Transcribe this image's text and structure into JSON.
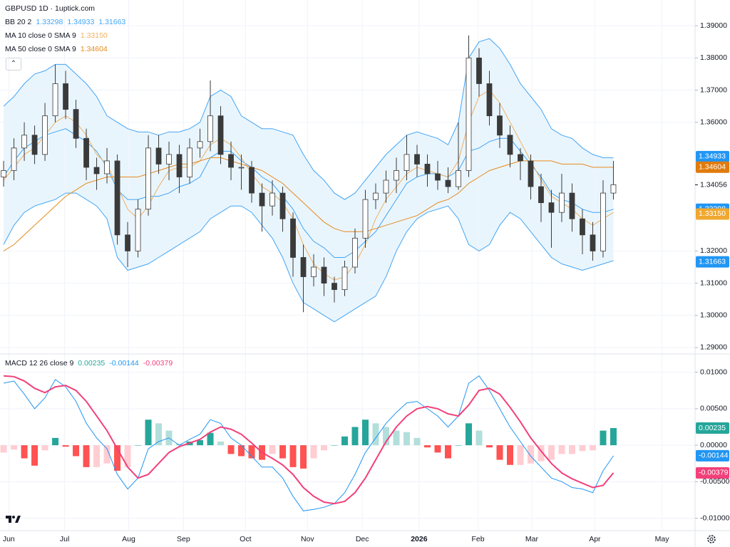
{
  "chart_data": [
    {
      "type": "candlestick",
      "title": "GBPUSD 1D · 1uptick.com",
      "xlim": [
        -0.35,
        66.9
      ],
      "xticks": [
        {
          "value": 0.5,
          "label": "Jun"
        },
        {
          "value": 5.9,
          "label": "Jul"
        },
        {
          "value": 12.1,
          "label": "Aug"
        },
        {
          "value": 17.4,
          "label": "Sep"
        },
        {
          "value": 23.4,
          "label": "Oct"
        },
        {
          "value": 29.4,
          "label": "Nov"
        },
        {
          "value": 34.7,
          "label": "Dec"
        },
        {
          "value": 40.2,
          "label": "2026"
        },
        {
          "value": 45.9,
          "label": "Feb"
        },
        {
          "value": 51.1,
          "label": "Mar"
        },
        {
          "value": 57.2,
          "label": "Apr"
        },
        {
          "value": 63.7,
          "label": "May"
        }
      ],
      "ylim": [
        1.288,
        1.398
      ],
      "yticks": [
        {
          "value": 1.39,
          "label": "1.39000"
        },
        {
          "value": 1.38,
          "label": "1.38000"
        },
        {
          "value": 1.37,
          "label": "1.37000"
        },
        {
          "value": 1.36,
          "label": "1.36000"
        },
        {
          "value": 1.32,
          "label": "1.32000"
        },
        {
          "value": 1.31,
          "label": "1.31000"
        },
        {
          "value": 1.3,
          "label": "1.30000"
        },
        {
          "value": 1.29,
          "label": "1.29000"
        }
      ],
      "grid": true,
      "up_color": "#ffffff",
      "down_color": "#3a3a3a",
      "wick_color": "#3a3a3a",
      "open": [
        1.343,
        1.345,
        1.352,
        1.356,
        1.35,
        1.362,
        1.372,
        1.364,
        1.355,
        1.346,
        1.344,
        1.348,
        1.325,
        1.32,
        1.333,
        1.352,
        1.347,
        1.35,
        1.343,
        1.352,
        1.354,
        1.362,
        1.35,
        1.346,
        1.346,
        1.338,
        1.334,
        1.338,
        1.33,
        1.318,
        1.312,
        1.315,
        1.31,
        1.308,
        1.315,
        1.324,
        1.336,
        1.338,
        1.342,
        1.345,
        1.35,
        1.347,
        1.344,
        1.342,
        1.34,
        1.345,
        1.38,
        1.372,
        1.362,
        1.356,
        1.35,
        1.348,
        1.34,
        1.335,
        1.332,
        1.338,
        1.33,
        1.325,
        1.32,
        1.338
      ],
      "high": [
        1.348,
        1.355,
        1.36,
        1.359,
        1.366,
        1.378,
        1.376,
        1.367,
        1.358,
        1.349,
        1.352,
        1.35,
        1.329,
        1.336,
        1.356,
        1.356,
        1.354,
        1.353,
        1.355,
        1.358,
        1.373,
        1.365,
        1.354,
        1.35,
        1.348,
        1.341,
        1.342,
        1.34,
        1.332,
        1.322,
        1.319,
        1.318,
        1.312,
        1.317,
        1.327,
        1.339,
        1.341,
        1.345,
        1.349,
        1.356,
        1.353,
        1.35,
        1.348,
        1.346,
        1.36,
        1.387,
        1.383,
        1.376,
        1.366,
        1.359,
        1.352,
        1.35,
        1.344,
        1.339,
        1.344,
        1.341,
        1.333,
        1.329,
        1.342,
        1.348
      ],
      "low": [
        1.34,
        1.342,
        1.348,
        1.347,
        1.348,
        1.36,
        1.361,
        1.352,
        1.342,
        1.339,
        1.341,
        1.322,
        1.315,
        1.318,
        1.331,
        1.344,
        1.342,
        1.338,
        1.341,
        1.349,
        1.351,
        1.347,
        1.342,
        1.339,
        1.335,
        1.326,
        1.331,
        1.326,
        1.312,
        1.301,
        1.309,
        1.306,
        1.304,
        1.306,
        1.313,
        1.321,
        1.333,
        1.335,
        1.338,
        1.342,
        1.343,
        1.34,
        1.339,
        1.338,
        1.339,
        1.343,
        1.368,
        1.359,
        1.352,
        1.346,
        1.342,
        1.336,
        1.329,
        1.321,
        1.329,
        1.326,
        1.319,
        1.317,
        1.318,
        1.336
      ],
      "close": [
        1.345,
        1.352,
        1.356,
        1.35,
        1.362,
        1.372,
        1.364,
        1.355,
        1.346,
        1.344,
        1.348,
        1.325,
        1.32,
        1.333,
        1.352,
        1.347,
        1.35,
        1.343,
        1.352,
        1.354,
        1.362,
        1.35,
        1.346,
        1.346,
        1.338,
        1.334,
        1.338,
        1.33,
        1.318,
        1.312,
        1.315,
        1.31,
        1.308,
        1.315,
        1.324,
        1.336,
        1.338,
        1.342,
        1.345,
        1.35,
        1.347,
        1.344,
        1.342,
        1.34,
        1.345,
        1.38,
        1.372,
        1.362,
        1.356,
        1.35,
        1.348,
        1.34,
        1.335,
        1.332,
        1.338,
        1.33,
        1.325,
        1.32,
        1.338,
        1.3406
      ],
      "bands": {
        "name": "BB 20 2",
        "color": "#42a5f5",
        "fill": "#e3f2fd",
        "readout": [
          "1.33298",
          "1.34933",
          "1.31663"
        ],
        "basis": [
          1.343,
          1.348,
          1.352,
          1.354,
          1.356,
          1.357,
          1.358,
          1.356,
          1.354,
          1.351,
          1.346,
          1.339,
          1.336,
          1.336,
          1.337,
          1.337,
          1.338,
          1.34,
          1.341,
          1.343,
          1.349,
          1.351,
          1.351,
          1.348,
          1.346,
          1.343,
          1.341,
          1.337,
          1.333,
          1.327,
          1.323,
          1.321,
          1.318,
          1.318,
          1.32,
          1.323,
          1.326,
          1.331,
          1.336,
          1.341,
          1.343,
          1.344,
          1.344,
          1.343,
          1.345,
          1.351,
          1.352,
          1.354,
          1.355,
          1.355,
          1.351,
          1.347,
          1.343,
          1.338,
          1.336,
          1.335,
          1.333,
          1.332,
          1.332,
          1.333
        ],
        "upper": [
          1.365,
          1.368,
          1.372,
          1.375,
          1.376,
          1.378,
          1.378,
          1.375,
          1.372,
          1.368,
          1.362,
          1.36,
          1.358,
          1.357,
          1.357,
          1.356,
          1.357,
          1.357,
          1.358,
          1.36,
          1.368,
          1.37,
          1.368,
          1.362,
          1.36,
          1.358,
          1.358,
          1.357,
          1.356,
          1.35,
          1.345,
          1.342,
          1.338,
          1.336,
          1.338,
          1.342,
          1.346,
          1.35,
          1.353,
          1.356,
          1.357,
          1.356,
          1.355,
          1.353,
          1.36,
          1.38,
          1.385,
          1.386,
          1.383,
          1.378,
          1.372,
          1.368,
          1.364,
          1.358,
          1.356,
          1.355,
          1.352,
          1.35,
          1.349,
          1.349
        ],
        "lower": [
          1.322,
          1.328,
          1.332,
          1.334,
          1.335,
          1.336,
          1.338,
          1.338,
          1.336,
          1.334,
          1.33,
          1.318,
          1.314,
          1.315,
          1.316,
          1.318,
          1.32,
          1.322,
          1.324,
          1.326,
          1.33,
          1.332,
          1.334,
          1.334,
          1.332,
          1.328,
          1.324,
          1.318,
          1.31,
          1.304,
          1.302,
          1.3,
          1.298,
          1.3,
          1.302,
          1.304,
          1.306,
          1.312,
          1.32,
          1.326,
          1.33,
          1.332,
          1.333,
          1.334,
          1.33,
          1.322,
          1.32,
          1.322,
          1.328,
          1.332,
          1.33,
          1.326,
          1.322,
          1.318,
          1.316,
          1.315,
          1.314,
          1.315,
          1.316,
          1.317
        ]
      },
      "series": [
        {
          "name": "MA 10 close 0 SMA 9",
          "color": "#f0b060",
          "readout": [
            "1.33150"
          ],
          "values": [
            1.342,
            1.346,
            1.35,
            1.352,
            1.356,
            1.36,
            1.362,
            1.36,
            1.356,
            1.35,
            1.347,
            1.34,
            1.333,
            1.33,
            1.334,
            1.34,
            1.345,
            1.346,
            1.346,
            1.348,
            1.353,
            1.355,
            1.353,
            1.349,
            1.344,
            1.34,
            1.338,
            1.335,
            1.33,
            1.322,
            1.316,
            1.313,
            1.311,
            1.312,
            1.316,
            1.322,
            1.33,
            1.336,
            1.34,
            1.344,
            1.346,
            1.345,
            1.344,
            1.343,
            1.348,
            1.36,
            1.368,
            1.37,
            1.366,
            1.36,
            1.354,
            1.348,
            1.342,
            1.337,
            1.335,
            1.333,
            1.33,
            1.328,
            1.33,
            1.332
          ]
        },
        {
          "name": "MA 50 close 0 SMA 9",
          "color": "#e68a1e",
          "readout": [
            "1.34604"
          ],
          "values": [
            1.32,
            1.322,
            1.325,
            1.328,
            1.331,
            1.334,
            1.337,
            1.339,
            1.341,
            1.342,
            1.343,
            1.343,
            1.343,
            1.343,
            1.344,
            1.345,
            1.346,
            1.347,
            1.347,
            1.348,
            1.349,
            1.349,
            1.348,
            1.347,
            1.346,
            1.345,
            1.343,
            1.341,
            1.338,
            1.335,
            1.332,
            1.329,
            1.327,
            1.326,
            1.326,
            1.326,
            1.327,
            1.328,
            1.329,
            1.33,
            1.331,
            1.333,
            1.335,
            1.336,
            1.338,
            1.341,
            1.343,
            1.345,
            1.346,
            1.347,
            1.348,
            1.348,
            1.348,
            1.348,
            1.347,
            1.347,
            1.347,
            1.346,
            1.346,
            1.346
          ]
        }
      ],
      "price_tags": [
        {
          "value": 1.34933,
          "label": "1.34933",
          "color": "#2196f3"
        },
        {
          "value": 1.34604,
          "label": "1.34604",
          "color": "#e07b0c"
        },
        {
          "value": 1.33298,
          "label": "1.33298",
          "color": "#2196f3"
        },
        {
          "value": 1.3315,
          "label": "1.33150",
          "color": "#f0a830"
        },
        {
          "value": 1.31663,
          "label": "1.31663",
          "color": "#2196f3"
        }
      ],
      "last_price": {
        "value": 1.34056,
        "label": "1.34056"
      }
    },
    {
      "type": "macd",
      "title": "MACD 12 26 close 9",
      "ylim": [
        -0.0117,
        0.0125
      ],
      "yticks": [
        {
          "value": 0.01,
          "label": "0.01000"
        },
        {
          "value": 0.005,
          "label": "0.00500"
        },
        {
          "value": 0,
          "label": "0.00000"
        },
        {
          "value": -0.005,
          "label": "-0.00500"
        },
        {
          "value": -0.01,
          "label": "-0.01000"
        }
      ],
      "histogram": {
        "readout": "0.00235",
        "readout_color": "#26a69a",
        "colors": {
          "up_rising": "#26a69a",
          "up_falling": "#b2dfdb",
          "down_falling": "#ff5252",
          "down_rising": "#ffcdd2"
        },
        "values": [
          -0.001,
          -0.0006,
          -0.0018,
          -0.0028,
          -0.0007,
          0.001,
          -0.0002,
          -0.0015,
          -0.003,
          -0.003,
          -0.0025,
          -0.0035,
          -0.003,
          0.0,
          0.0035,
          0.003,
          0.002,
          0.0002,
          0.0005,
          0.0007,
          0.0017,
          0.0005,
          -0.0012,
          -0.0015,
          -0.0018,
          -0.002,
          -0.0012,
          -0.0018,
          -0.003,
          -0.0032,
          -0.0018,
          -0.0007,
          0.0,
          0.0012,
          0.0025,
          0.0035,
          0.003,
          0.0025,
          0.002,
          0.0018,
          0.001,
          -0.0003,
          -0.001,
          -0.0018,
          0.0,
          0.003,
          0.002,
          -0.0003,
          -0.002,
          -0.0027,
          -0.0027,
          -0.0025,
          -0.0022,
          -0.002,
          -0.0012,
          -0.0012,
          -0.0008,
          -0.0007,
          0.002,
          0.00235
        ]
      },
      "series": [
        {
          "color": "#2196f3",
          "readout": "-0.00144",
          "values": [
            0.0085,
            0.0088,
            0.007,
            0.005,
            0.0065,
            0.009,
            0.008,
            0.006,
            0.003,
            0.001,
            -0.0005,
            -0.004,
            -0.006,
            -0.0045,
            -0.0005,
            0.0005,
            0.001,
            0.0,
            0.0008,
            0.0015,
            0.0035,
            0.003,
            0.001,
            0.0,
            -0.0015,
            -0.003,
            -0.003,
            -0.0045,
            -0.007,
            -0.009,
            -0.0088,
            -0.0085,
            -0.008,
            -0.0065,
            -0.004,
            -0.001,
            0.001,
            0.003,
            0.0045,
            0.0058,
            0.006,
            0.005,
            0.004,
            0.0025,
            0.004,
            0.0085,
            0.0095,
            0.0075,
            0.005,
            0.0025,
            0.0005,
            -0.0015,
            -0.003,
            -0.0045,
            -0.005,
            -0.0058,
            -0.006,
            -0.0065,
            -0.0035,
            -0.00144
          ]
        },
        {
          "color": "#f2407a",
          "readout": "-0.00379",
          "values": [
            0.0095,
            0.0094,
            0.0088,
            0.0078,
            0.0072,
            0.008,
            0.0082,
            0.0075,
            0.006,
            0.004,
            0.002,
            -0.0005,
            -0.003,
            -0.0045,
            -0.004,
            -0.0025,
            -0.001,
            -0.0002,
            0.0003,
            0.0008,
            0.0018,
            0.0025,
            0.0022,
            0.0015,
            0.0003,
            -0.001,
            -0.0018,
            -0.0027,
            -0.004,
            -0.0058,
            -0.007,
            -0.0078,
            -0.008,
            -0.0077,
            -0.0065,
            -0.0045,
            -0.002,
            0.0005,
            0.0025,
            0.004,
            0.005,
            0.0053,
            0.005,
            0.0043,
            0.004,
            0.0055,
            0.0075,
            0.0078,
            0.007,
            0.0052,
            0.0032,
            0.001,
            -0.0008,
            -0.0025,
            -0.0038,
            -0.0046,
            -0.0052,
            -0.0058,
            -0.0055,
            -0.00379
          ]
        }
      ],
      "price_tags": [
        {
          "value": 0.00235,
          "label": "0.00235",
          "color": "#26a69a"
        },
        {
          "value": -0.00144,
          "label": "-0.00144",
          "color": "#2196f3"
        },
        {
          "value": -0.00379,
          "label": "-0.00379",
          "color": "#f2407a"
        }
      ]
    }
  ]
}
